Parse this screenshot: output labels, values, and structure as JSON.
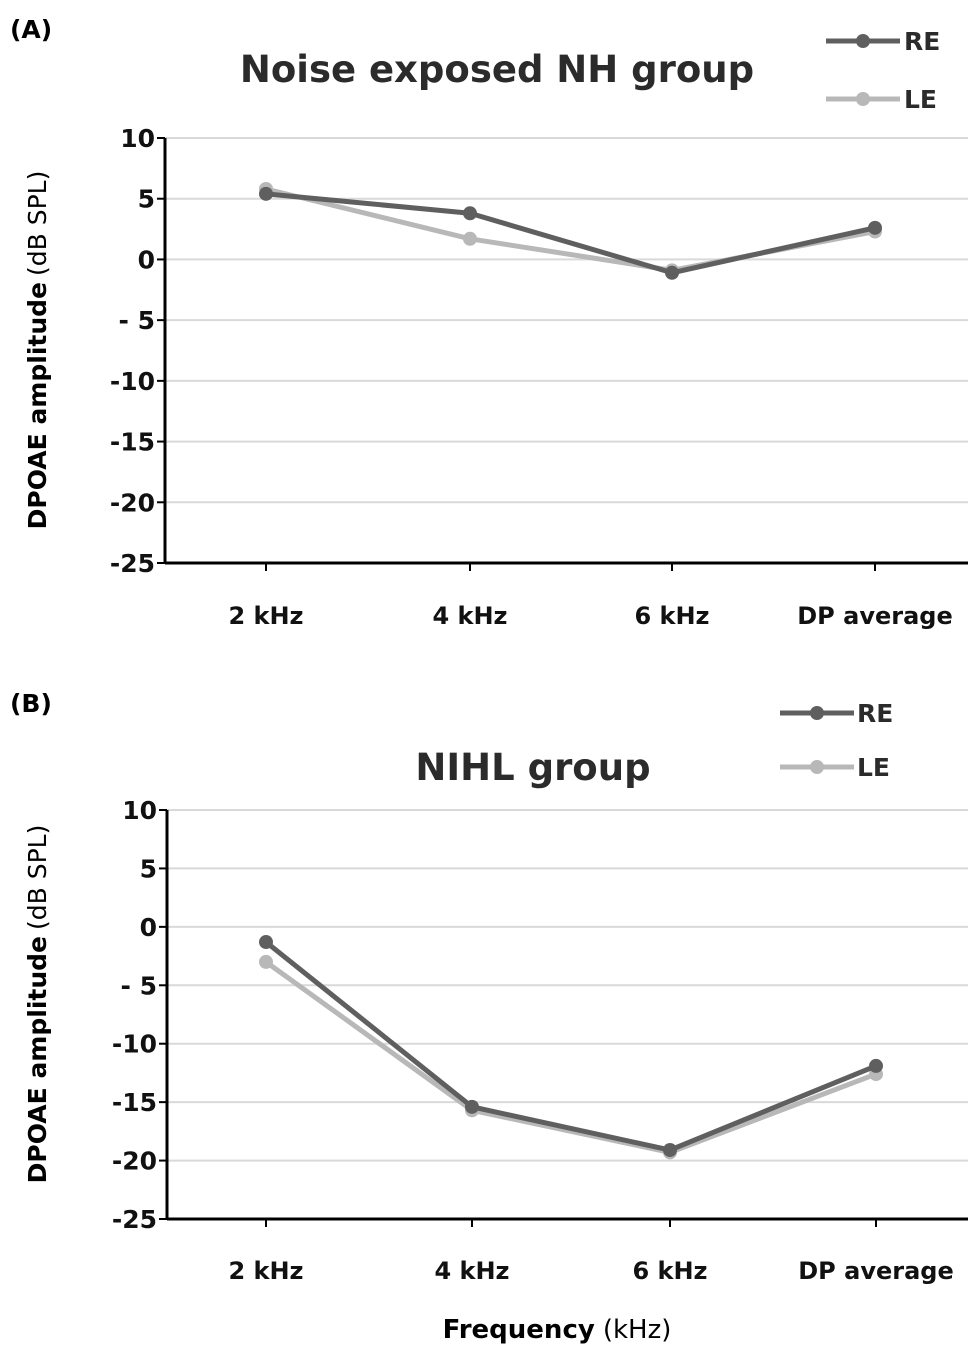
{
  "figure": {
    "xlabel_bold": "Frequency",
    "xlabel_unit": "(kHz)"
  },
  "chart_data": [
    {
      "type": "line",
      "panel_label": "(A)",
      "title": "Noise exposed NH group",
      "ylabel_bold": "DPOAE amplitude",
      "ylabel_unit": "(dB SPL)",
      "categories": [
        "2 kHz",
        "4 kHz",
        "6 kHz",
        "DP average"
      ],
      "ylim": [
        -25,
        10
      ],
      "yticks": [
        10,
        5,
        0,
        -5,
        -10,
        -15,
        -20,
        -25
      ],
      "ytick_labels": [
        "10",
        "5",
        "0",
        "- 5",
        "-10",
        "-15",
        "-20",
        "-25"
      ],
      "grid": true,
      "legend": "top-right",
      "series": [
        {
          "name": "RE",
          "color": "#5f5f5f",
          "values": [
            5.4,
            3.8,
            -1.1,
            2.6
          ]
        },
        {
          "name": "LE",
          "color": "#b8b8b8",
          "values": [
            5.8,
            1.7,
            -0.9,
            2.3
          ]
        }
      ]
    },
    {
      "type": "line",
      "panel_label": "(B)",
      "title": "NIHL group",
      "ylabel_bold": "DPOAE amplitude",
      "ylabel_unit": "(dB SPL)",
      "categories": [
        "2 kHz",
        "4 kHz",
        "6 kHz",
        "DP average"
      ],
      "ylim": [
        -25,
        10
      ],
      "yticks": [
        10,
        5,
        0,
        -5,
        -10,
        -15,
        -20,
        -25
      ],
      "ytick_labels": [
        "10",
        "5",
        "0",
        "- 5",
        "-10",
        "-15",
        "-20",
        "-25"
      ],
      "grid": true,
      "legend": "top-right",
      "series": [
        {
          "name": "RE",
          "color": "#5f5f5f",
          "values": [
            -1.3,
            -15.4,
            -19.1,
            -11.9
          ]
        },
        {
          "name": "LE",
          "color": "#b8b8b8",
          "values": [
            -3.0,
            -15.7,
            -19.3,
            -12.6
          ]
        }
      ]
    }
  ]
}
